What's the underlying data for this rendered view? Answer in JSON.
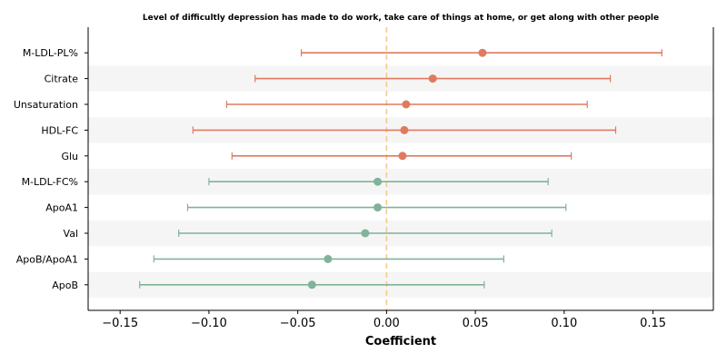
{
  "chart_data": {
    "type": "forest",
    "title": "Level of difficultly depression has made to do work, take care of things at home, or get along with other people",
    "xlabel": "Coefficient",
    "ylabel": "",
    "xlim": [
      -0.168,
      0.184
    ],
    "xticks": [
      -0.15,
      -0.1,
      -0.05,
      0.0,
      0.05,
      0.1,
      0.15
    ],
    "xtick_labels": [
      "−0.15",
      "−0.10",
      "−0.05",
      "0.00",
      "0.05",
      "0.10",
      "0.15"
    ],
    "reference_line": 0.0,
    "grid": false,
    "row_banding": true,
    "colors": {
      "positive": "#e07a5f",
      "negative": "#81b29a",
      "reference": "#f2cc8f",
      "band": "#f5f5f5"
    },
    "rows": [
      {
        "label": "M-LDL-PL%",
        "estimate": 0.054,
        "lower": -0.048,
        "upper": 0.155
      },
      {
        "label": "Citrate",
        "estimate": 0.026,
        "lower": -0.074,
        "upper": 0.126
      },
      {
        "label": "Unsaturation",
        "estimate": 0.011,
        "lower": -0.09,
        "upper": 0.113
      },
      {
        "label": "HDL-FC",
        "estimate": 0.01,
        "lower": -0.109,
        "upper": 0.129
      },
      {
        "label": "Glu",
        "estimate": 0.009,
        "lower": -0.087,
        "upper": 0.104
      },
      {
        "label": "M-LDL-FC%",
        "estimate": -0.005,
        "lower": -0.1,
        "upper": 0.091
      },
      {
        "label": "ApoA1",
        "estimate": -0.005,
        "lower": -0.112,
        "upper": 0.101
      },
      {
        "label": "Val",
        "estimate": -0.012,
        "lower": -0.117,
        "upper": 0.093
      },
      {
        "label": "ApoB/ApoA1",
        "estimate": -0.033,
        "lower": -0.131,
        "upper": 0.066
      },
      {
        "label": "ApoB",
        "estimate": -0.042,
        "lower": -0.139,
        "upper": 0.055
      }
    ]
  }
}
